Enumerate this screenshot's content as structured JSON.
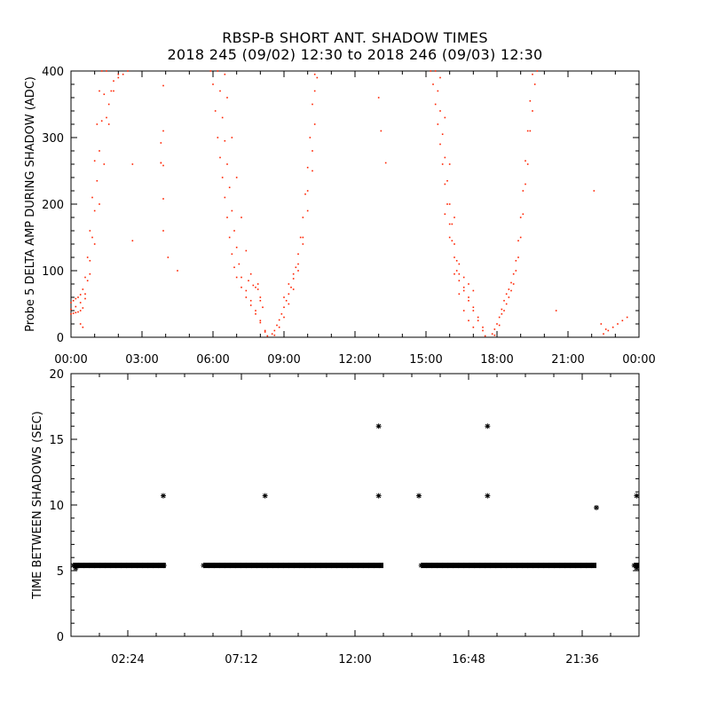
{
  "title": "RBSP-B SHORT ANT. SHADOW TIMES",
  "subtitle": "2018 245 (09/02) 12:30 to 2018 246 (09/03) 12:30",
  "colors": {
    "points": "#ff2200",
    "axes": "#000000",
    "background": "#ffffff"
  },
  "chart_data": [
    {
      "type": "scatter",
      "ylabel": "Probe 5 DELTA AMP DURING SHADOW (ADC)",
      "xlabel": "",
      "xlim": [
        0,
        24
      ],
      "ylim": [
        0,
        400
      ],
      "x_unit": "hours",
      "xticks": [
        0,
        3,
        6,
        9,
        12,
        15,
        18,
        21,
        24
      ],
      "xtick_labels": [
        "00:00",
        "03:00",
        "06:00",
        "09:00",
        "12:00",
        "15:00",
        "18:00",
        "21:00",
        "00:00"
      ],
      "yticks": [
        0,
        100,
        200,
        300,
        400
      ],
      "ytick_labels": [
        "0",
        "100",
        "200",
        "300",
        "400"
      ],
      "grid": false,
      "point_color": "#ff2200",
      "series": [
        {
          "values": [
            [
              0.0,
              52
            ],
            [
              0.1,
              55
            ],
            [
              0.2,
              58
            ],
            [
              0.3,
              60
            ],
            [
              0.4,
              64
            ],
            [
              0.5,
              72
            ],
            [
              0.6,
              90
            ],
            [
              0.7,
              120
            ],
            [
              0.8,
              160
            ],
            [
              0.9,
              210
            ],
            [
              1.0,
              265
            ],
            [
              1.1,
              320
            ],
            [
              1.2,
              370
            ],
            [
              1.3,
              400
            ],
            [
              0.0,
              35
            ],
            [
              0.1,
              36
            ],
            [
              0.2,
              37
            ],
            [
              0.3,
              38
            ],
            [
              0.4,
              40
            ],
            [
              0.5,
              44
            ],
            [
              0.6,
              58
            ],
            [
              0.7,
              85
            ],
            [
              0.8,
              115
            ],
            [
              0.9,
              150
            ],
            [
              1.0,
              190
            ],
            [
              1.1,
              235
            ],
            [
              1.2,
              280
            ],
            [
              1.3,
              325
            ],
            [
              1.4,
              365
            ],
            [
              1.5,
              400
            ],
            [
              0.0,
              42
            ],
            [
              0.2,
              46
            ],
            [
              0.4,
              52
            ],
            [
              0.6,
              65
            ],
            [
              0.8,
              95
            ],
            [
              1.0,
              140
            ],
            [
              1.2,
              200
            ],
            [
              1.4,
              260
            ],
            [
              1.6,
              320
            ],
            [
              1.8,
              370
            ],
            [
              2.0,
              395
            ],
            [
              1.5,
              330
            ],
            [
              1.6,
              350
            ],
            [
              1.7,
              370
            ],
            [
              1.8,
              385
            ],
            [
              2.0,
              390
            ],
            [
              2.2,
              395
            ],
            [
              2.4,
              400
            ],
            [
              0.5,
              15
            ],
            [
              0.4,
              20
            ],
            [
              2.6,
              260
            ],
            [
              2.6,
              145
            ],
            [
              3.8,
              262
            ],
            [
              3.8,
              292
            ],
            [
              3.8,
              262
            ],
            [
              3.9,
              378
            ],
            [
              3.9,
              310
            ],
            [
              3.9,
              258
            ],
            [
              3.9,
              208
            ],
            [
              3.9,
              160
            ],
            [
              4.1,
              120
            ],
            [
              4.5,
              100
            ],
            [
              5.9,
              400
            ],
            [
              6.0,
              380
            ],
            [
              6.1,
              340
            ],
            [
              6.2,
              300
            ],
            [
              6.3,
              270
            ],
            [
              6.4,
              240
            ],
            [
              6.5,
              210
            ],
            [
              6.6,
              180
            ],
            [
              6.7,
              150
            ],
            [
              6.8,
              125
            ],
            [
              6.9,
              105
            ],
            [
              7.0,
              90
            ],
            [
              7.2,
              75
            ],
            [
              7.4,
              60
            ],
            [
              7.6,
              48
            ],
            [
              7.8,
              35
            ],
            [
              8.0,
              22
            ],
            [
              8.2,
              8
            ],
            [
              8.3,
              2
            ],
            [
              6.2,
              400
            ],
            [
              6.3,
              370
            ],
            [
              6.4,
              330
            ],
            [
              6.5,
              295
            ],
            [
              6.6,
              260
            ],
            [
              6.7,
              225
            ],
            [
              6.8,
              190
            ],
            [
              6.9,
              160
            ],
            [
              7.0,
              135
            ],
            [
              7.1,
              110
            ],
            [
              7.2,
              90
            ],
            [
              7.4,
              70
            ],
            [
              7.6,
              55
            ],
            [
              7.8,
              40
            ],
            [
              8.0,
              25
            ],
            [
              8.2,
              10
            ],
            [
              6.5,
              395
            ],
            [
              6.6,
              360
            ],
            [
              6.8,
              300
            ],
            [
              7.0,
              240
            ],
            [
              7.2,
              180
            ],
            [
              7.4,
              130
            ],
            [
              7.6,
              95
            ],
            [
              7.8,
              75
            ],
            [
              7.9,
              80
            ],
            [
              8.0,
              60
            ],
            [
              7.5,
              85
            ],
            [
              7.7,
              78
            ],
            [
              7.9,
              72
            ],
            [
              8.0,
              55
            ],
            [
              8.1,
              45
            ],
            [
              8.5,
              5
            ],
            [
              8.6,
              10
            ],
            [
              8.7,
              18
            ],
            [
              8.8,
              26
            ],
            [
              8.9,
              35
            ],
            [
              9.0,
              45
            ],
            [
              9.1,
              55
            ],
            [
              9.2,
              65
            ],
            [
              9.3,
              75
            ],
            [
              9.4,
              88
            ],
            [
              9.5,
              105
            ],
            [
              9.6,
              125
            ],
            [
              9.7,
              150
            ],
            [
              9.8,
              180
            ],
            [
              9.9,
              215
            ],
            [
              10.0,
              255
            ],
            [
              10.1,
              300
            ],
            [
              10.2,
              350
            ],
            [
              10.3,
              395
            ],
            [
              8.6,
              3
            ],
            [
              8.8,
              15
            ],
            [
              9.0,
              30
            ],
            [
              9.2,
              50
            ],
            [
              9.4,
              72
            ],
            [
              9.6,
              100
            ],
            [
              9.8,
              140
            ],
            [
              10.0,
              190
            ],
            [
              10.2,
              250
            ],
            [
              10.3,
              320
            ],
            [
              10.4,
              390
            ],
            [
              9.0,
              60
            ],
            [
              9.2,
              80
            ],
            [
              9.4,
              95
            ],
            [
              9.6,
              110
            ],
            [
              9.8,
              150
            ],
            [
              10.0,
              220
            ],
            [
              10.2,
              280
            ],
            [
              10.3,
              370
            ],
            [
              13.0,
              360
            ],
            [
              13.1,
              310
            ],
            [
              13.3,
              262
            ],
            [
              15.2,
              400
            ],
            [
              15.3,
              380
            ],
            [
              15.4,
              350
            ],
            [
              15.5,
              320
            ],
            [
              15.6,
              290
            ],
            [
              15.7,
              260
            ],
            [
              15.8,
              230
            ],
            [
              15.9,
              200
            ],
            [
              16.0,
              170
            ],
            [
              16.1,
              145
            ],
            [
              16.2,
              120
            ],
            [
              16.3,
              100
            ],
            [
              16.4,
              85
            ],
            [
              16.6,
              70
            ],
            [
              16.8,
              55
            ],
            [
              17.0,
              40
            ],
            [
              17.2,
              25
            ],
            [
              17.4,
              10
            ],
            [
              17.5,
              2
            ],
            [
              15.4,
              400
            ],
            [
              15.5,
              370
            ],
            [
              15.6,
              340
            ],
            [
              15.7,
              305
            ],
            [
              15.8,
              270
            ],
            [
              15.9,
              235
            ],
            [
              16.0,
              200
            ],
            [
              16.1,
              170
            ],
            [
              16.2,
              140
            ],
            [
              16.3,
              115
            ],
            [
              16.4,
              95
            ],
            [
              16.6,
              75
            ],
            [
              16.8,
              60
            ],
            [
              17.0,
              45
            ],
            [
              17.2,
              30
            ],
            [
              17.4,
              15
            ],
            [
              15.6,
              390
            ],
            [
              15.8,
              330
            ],
            [
              16.0,
              260
            ],
            [
              16.2,
              180
            ],
            [
              16.4,
              110
            ],
            [
              16.6,
              90
            ],
            [
              16.8,
              80
            ],
            [
              17.0,
              70
            ],
            [
              15.8,
              185
            ],
            [
              16.0,
              150
            ],
            [
              16.2,
              95
            ],
            [
              16.4,
              65
            ],
            [
              16.6,
              40
            ],
            [
              16.8,
              25
            ],
            [
              17.0,
              15
            ],
            [
              17.8,
              5
            ],
            [
              17.9,
              12
            ],
            [
              18.0,
              20
            ],
            [
              18.1,
              30
            ],
            [
              18.2,
              42
            ],
            [
              18.3,
              55
            ],
            [
              18.4,
              65
            ],
            [
              18.5,
              72
            ],
            [
              18.6,
              82
            ],
            [
              18.7,
              95
            ],
            [
              18.8,
              115
            ],
            [
              18.9,
              145
            ],
            [
              19.0,
              180
            ],
            [
              19.1,
              220
            ],
            [
              19.2,
              265
            ],
            [
              19.3,
              310
            ],
            [
              19.4,
              355
            ],
            [
              19.5,
              395
            ],
            [
              17.9,
              3
            ],
            [
              18.1,
              18
            ],
            [
              18.3,
              40
            ],
            [
              18.5,
              60
            ],
            [
              18.7,
              80
            ],
            [
              18.9,
              120
            ],
            [
              19.1,
              185
            ],
            [
              19.3,
              260
            ],
            [
              19.5,
              340
            ],
            [
              19.7,
              400
            ],
            [
              18.2,
              35
            ],
            [
              18.4,
              50
            ],
            [
              18.6,
              70
            ],
            [
              18.8,
              100
            ],
            [
              19.0,
              150
            ],
            [
              19.2,
              230
            ],
            [
              19.4,
              310
            ],
            [
              19.6,
              380
            ],
            [
              20.5,
              40
            ],
            [
              22.1,
              220
            ],
            [
              22.5,
              5
            ],
            [
              22.7,
              10
            ],
            [
              22.9,
              15
            ],
            [
              23.1,
              20
            ],
            [
              23.3,
              25
            ],
            [
              23.5,
              30
            ],
            [
              22.4,
              20
            ],
            [
              22.6,
              12
            ]
          ]
        }
      ]
    },
    {
      "type": "scatter",
      "ylabel": "TIME BETWEEN SHADOWS (SEC)",
      "xlabel": "",
      "xlim": [
        0,
        24
      ],
      "ylim": [
        0,
        20
      ],
      "x_unit": "hours",
      "xticks": [
        2.4,
        7.2,
        12.0,
        16.8,
        21.6
      ],
      "xtick_labels": [
        "02:24",
        "07:12",
        "12:00",
        "16:48",
        "21:36"
      ],
      "yticks": [
        0,
        5,
        10,
        15,
        20
      ],
      "ytick_labels": [
        "0",
        "5",
        "10",
        "15",
        "20"
      ],
      "grid": false,
      "marker": "asterisk",
      "point_color": "#000000",
      "dense_segments": [
        {
          "y": 5.4,
          "x_start": 0.1,
          "x_end": 4.0
        },
        {
          "y": 5.4,
          "x_start": 5.6,
          "x_end": 13.2
        },
        {
          "y": 5.4,
          "x_start": 14.8,
          "x_end": 22.2
        },
        {
          "y": 5.4,
          "x_start": 23.8,
          "x_end": 24.0
        }
      ],
      "points": [
        [
          3.9,
          10.7
        ],
        [
          8.2,
          10.7
        ],
        [
          13.0,
          16.0
        ],
        [
          13.0,
          10.7
        ],
        [
          14.7,
          10.7
        ],
        [
          17.6,
          16.0
        ],
        [
          17.6,
          10.7
        ],
        [
          22.2,
          9.8
        ],
        [
          23.9,
          10.7
        ],
        [
          0.2,
          5.2
        ],
        [
          23.9,
          5.2
        ]
      ]
    }
  ]
}
